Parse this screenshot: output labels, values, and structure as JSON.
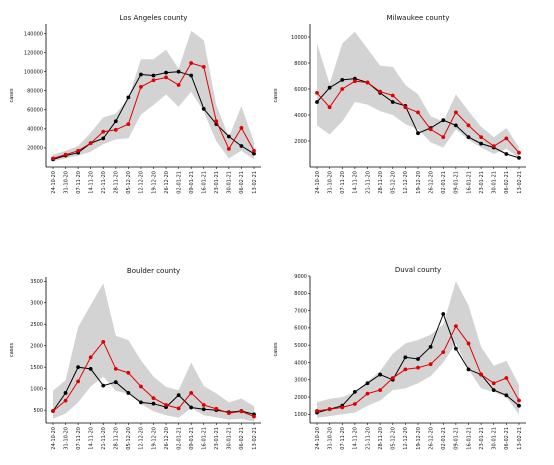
{
  "colors": {
    "band": "#d3d3d3",
    "observed": "#000000",
    "predicted": "#e00000",
    "axis": "#000000"
  },
  "x_dates": [
    "24-10-20",
    "31-10-20",
    "07-11-20",
    "14-11-20",
    "21-11-20",
    "28-11-20",
    "05-12-20",
    "12-12-20",
    "19-12-20",
    "26-12-20",
    "02-01-21",
    "09-01-21",
    "16-01-21",
    "23-01-21",
    "30-01-21",
    "06-02-21",
    "13-02-21"
  ],
  "chart_data": [
    {
      "type": "line",
      "title": "Los Angeles county",
      "ylabel": "cases",
      "ylim": [
        0,
        150000
      ],
      "yticks": [
        20000,
        40000,
        60000,
        80000,
        100000,
        120000,
        140000
      ],
      "series": [
        {
          "values": [
            8000,
            12000,
            15000,
            25000,
            30000,
            48000,
            73000,
            97000,
            96000,
            99000,
            100000,
            96000,
            61000,
            45000,
            32000,
            22000,
            14000
          ]
        },
        {
          "values": [
            9000,
            13000,
            17000,
            25000,
            37000,
            39000,
            45000,
            84000,
            91000,
            94000,
            86000,
            109000,
            105000,
            48000,
            19000,
            41000,
            17000
          ]
        }
      ],
      "band": {
        "lower": [
          6000,
          9000,
          12000,
          16000,
          24000,
          29000,
          30000,
          55000,
          65000,
          76000,
          63000,
          79000,
          58000,
          27000,
          9000,
          17000,
          8000
        ],
        "upper": [
          13000,
          17000,
          22000,
          36000,
          52000,
          56000,
          72000,
          113000,
          113000,
          123000,
          103000,
          143000,
          133000,
          65000,
          31000,
          64000,
          26000
        ]
      }
    },
    {
      "type": "line",
      "title": "Milwaukee county",
      "ylabel": "cases",
      "ylim": [
        0,
        11000
      ],
      "yticks": [
        2000,
        4000,
        6000,
        8000,
        10000
      ],
      "series": [
        {
          "values": [
            5000,
            6100,
            6700,
            6800,
            6500,
            5700,
            5000,
            4700,
            2600,
            3000,
            3600,
            3200,
            2300,
            1800,
            1500,
            1000,
            700
          ]
        },
        {
          "values": [
            5700,
            4600,
            6000,
            6600,
            6500,
            5800,
            5500,
            4600,
            4200,
            2900,
            2300,
            4200,
            3200,
            2300,
            1600,
            2200,
            1100
          ]
        }
      ],
      "band": {
        "lower": [
          3200,
          2500,
          3500,
          5000,
          4800,
          4300,
          4000,
          3300,
          2900,
          1900,
          1500,
          2900,
          2100,
          1500,
          1000,
          1400,
          700
        ],
        "upper": [
          9500,
          6400,
          9500,
          10400,
          9100,
          7800,
          7700,
          6300,
          5600,
          3900,
          3500,
          5600,
          4300,
          3100,
          2300,
          3000,
          1500
        ]
      }
    },
    {
      "type": "line",
      "title": "Boulder county",
      "ylabel": "cases",
      "ylim": [
        200,
        3600
      ],
      "yticks": [
        500,
        1000,
        1500,
        2000,
        2500,
        3000,
        3500
      ],
      "series": [
        {
          "values": [
            480,
            900,
            1500,
            1460,
            1070,
            1150,
            900,
            680,
            650,
            570,
            850,
            560,
            520,
            500,
            450,
            480,
            400
          ]
        },
        {
          "values": [
            480,
            720,
            1170,
            1730,
            2090,
            1460,
            1370,
            1050,
            780,
            620,
            540,
            900,
            620,
            530,
            430,
            470,
            350
          ]
        }
      ],
      "band": {
        "lower": [
          300,
          420,
          680,
          1050,
          1280,
          950,
          880,
          650,
          470,
          380,
          320,
          550,
          380,
          330,
          280,
          300,
          230
        ],
        "upper": [
          950,
          1200,
          2430,
          2950,
          3450,
          2230,
          2130,
          1660,
          1280,
          1040,
          960,
          1610,
          1060,
          890,
          680,
          770,
          590
        ]
      }
    },
    {
      "type": "line",
      "title": "Duval county",
      "ylabel": "cases",
      "ylim": [
        500,
        9000
      ],
      "yticks": [
        1000,
        2000,
        3000,
        4000,
        5000,
        6000,
        7000,
        8000,
        9000
      ],
      "series": [
        {
          "values": [
            1100,
            1300,
            1500,
            2300,
            2800,
            3300,
            3000,
            4300,
            4200,
            4900,
            6800,
            4800,
            3600,
            3300,
            2400,
            2100,
            1500
          ]
        },
        {
          "values": [
            1200,
            1300,
            1400,
            1600,
            2200,
            2400,
            3100,
            3600,
            3700,
            3900,
            4600,
            6100,
            5100,
            3300,
            2800,
            3100,
            1800
          ]
        }
      ],
      "band": {
        "lower": [
          800,
          900,
          1000,
          1100,
          1500,
          1800,
          2400,
          2500,
          2800,
          3200,
          4000,
          5100,
          3600,
          2500,
          2300,
          2000,
          1000
        ],
        "upper": [
          1700,
          1900,
          2000,
          2300,
          2900,
          3500,
          4500,
          5100,
          5300,
          5600,
          6200,
          8700,
          7300,
          4900,
          3800,
          4100,
          2700
        ]
      }
    }
  ]
}
